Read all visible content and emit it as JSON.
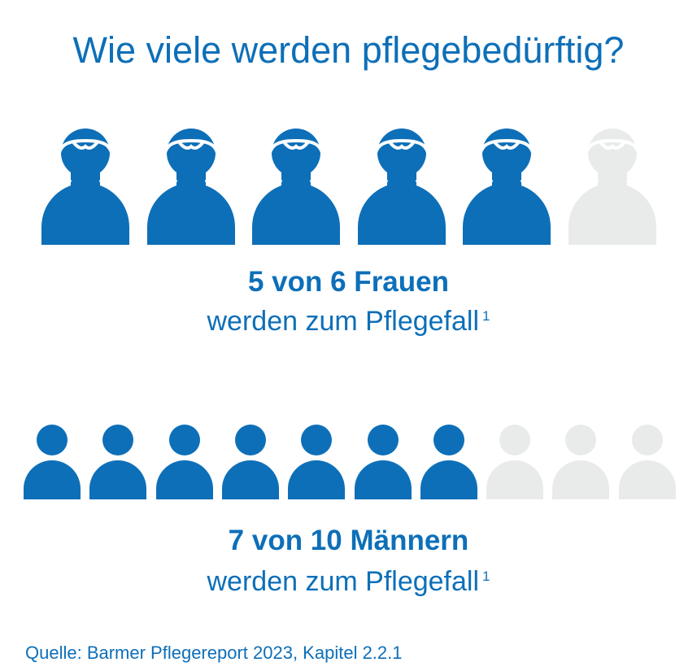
{
  "colors": {
    "primary": "#0d6fb8",
    "inactive": "#e9ebea",
    "background": "#ffffff"
  },
  "title": "Wie viele werden pflegebedürftig?",
  "women": {
    "icon": "woman-person-icon",
    "total": 6,
    "highlighted": 5,
    "headline": "5 von 6 Frauen",
    "text": "werden zum Pflegefall",
    "footnote": "1"
  },
  "men": {
    "icon": "man-person-icon",
    "total": 10,
    "highlighted": 7,
    "headline": "7 von 10 Männern",
    "text": "werden zum Pflegefall",
    "footnote": "1"
  },
  "source": "Quelle: Barmer Pflegereport 2023, Kapitel 2.2.1"
}
